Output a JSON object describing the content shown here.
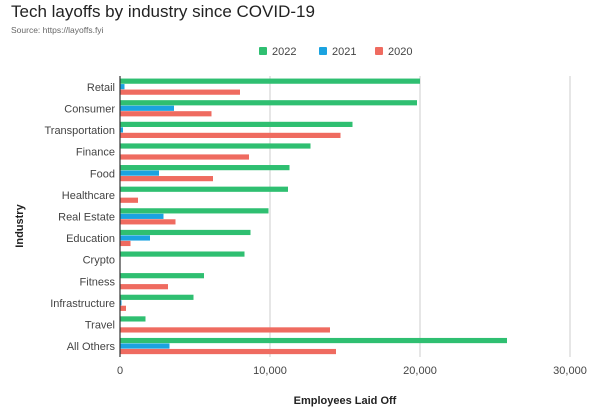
{
  "chart_data": {
    "type": "bar",
    "orientation": "horizontal",
    "title": "Tech layoffs by industry since COVID-19",
    "subtitle": "Source: https://layoffs.fyi",
    "xlabel": "Employees Laid Off",
    "ylabel": "Industry",
    "xlim": [
      0,
      30000
    ],
    "x_ticks": [
      0,
      10000,
      20000,
      30000
    ],
    "x_tick_labels": [
      "0",
      "10,000",
      "20,000",
      "30,000"
    ],
    "grid": true,
    "legend_position": "top-center",
    "categories": [
      "Retail",
      "Consumer",
      "Transportation",
      "Finance",
      "Food",
      "Healthcare",
      "Real Estate",
      "Education",
      "Crypto",
      "Fitness",
      "Infrastructure",
      "Travel",
      "All Others"
    ],
    "series": [
      {
        "name": "2022",
        "color": "#2fbf71",
        "values": [
          20000,
          19800,
          15500,
          12700,
          11300,
          11200,
          9900,
          8700,
          8300,
          5600,
          4900,
          1700,
          25800
        ]
      },
      {
        "name": "2021",
        "color": "#1ba3e0",
        "values": [
          300,
          3600,
          200,
          0,
          2600,
          0,
          2900,
          2000,
          0,
          0,
          100,
          0,
          3300
        ]
      },
      {
        "name": "2020",
        "color": "#ef6b60",
        "values": [
          8000,
          6100,
          14700,
          8600,
          6200,
          1200,
          3700,
          700,
          0,
          3200,
          400,
          14000,
          14400
        ]
      }
    ]
  }
}
